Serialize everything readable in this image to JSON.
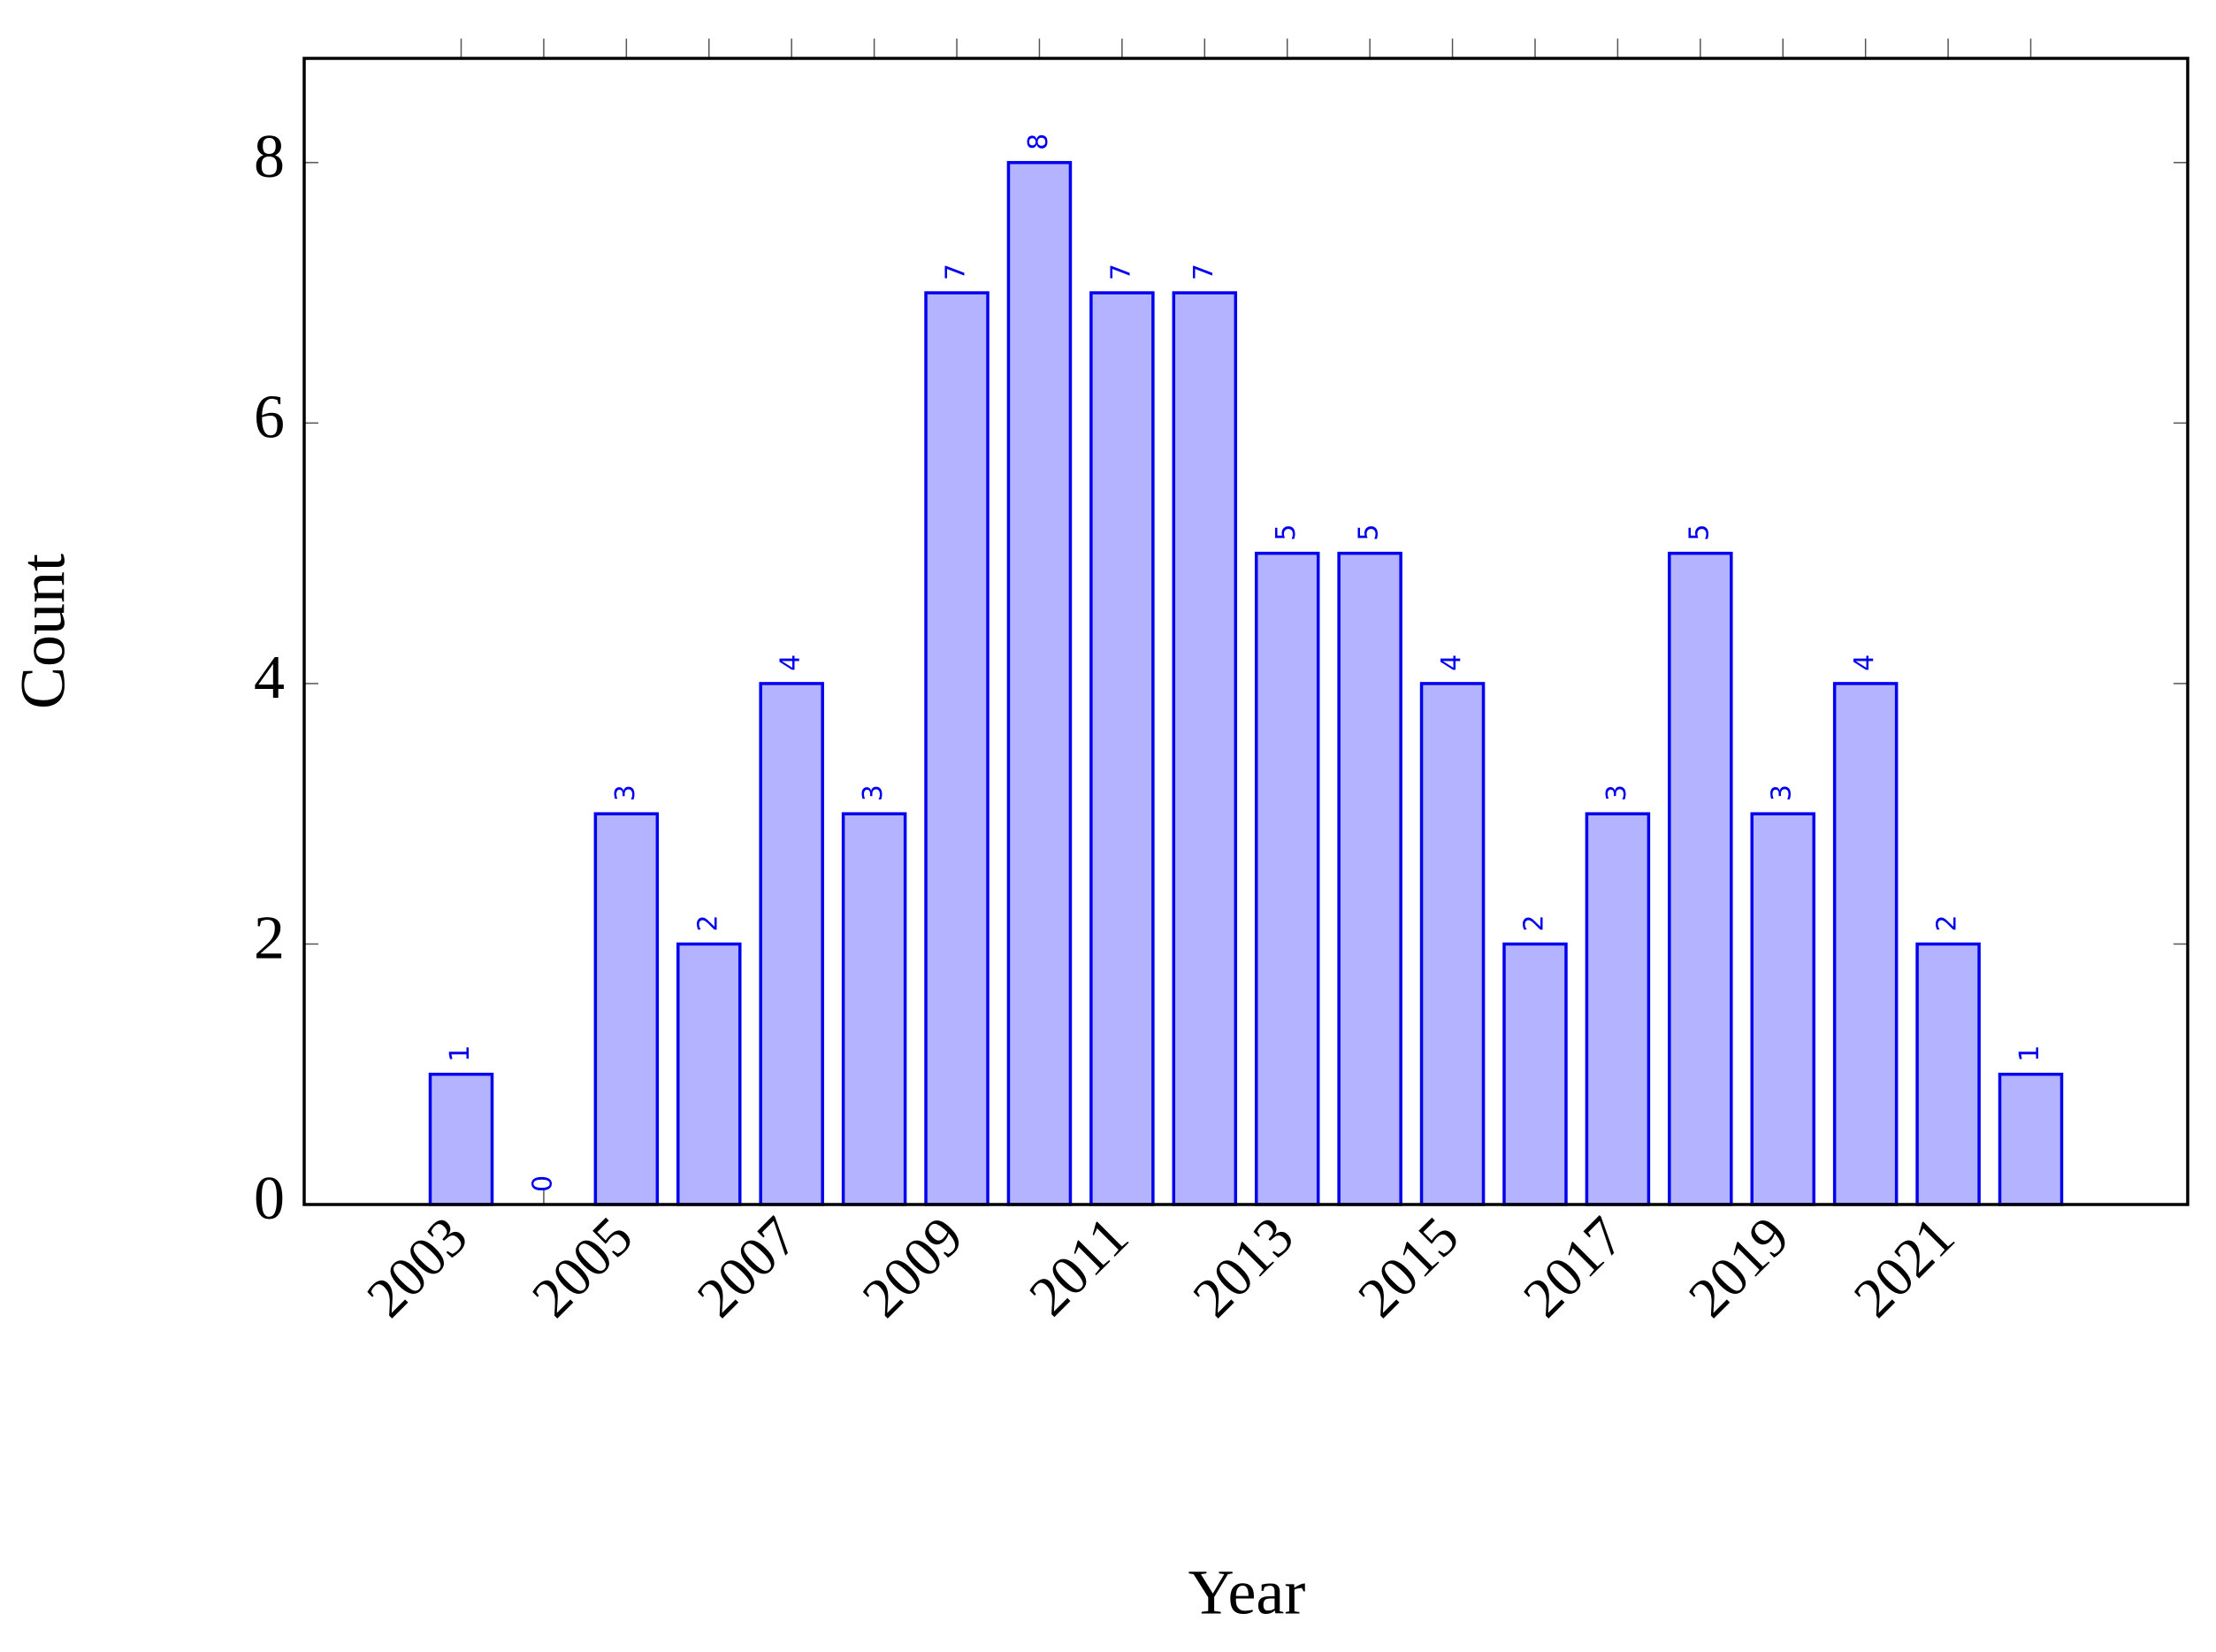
{
  "chart_data": {
    "type": "bar",
    "x": [
      2003,
      2004,
      2005,
      2006,
      2007,
      2008,
      2009,
      2010,
      2011,
      2012,
      2013,
      2014,
      2015,
      2016,
      2017,
      2018,
      2019,
      2020,
      2021,
      2022
    ],
    "values": [
      1,
      0,
      3,
      2,
      4,
      3,
      7,
      8,
      7,
      7,
      5,
      5,
      4,
      2,
      3,
      5,
      3,
      4,
      2,
      1
    ],
    "color": "#b3b3ff",
    "edge_color": "#0000ee",
    "label_color": "#0000ee",
    "xlabel": "Year",
    "ylabel": "Count",
    "xlim": [
      2001.1,
      2023.9
    ],
    "xticks": [
      2003,
      2005,
      2007,
      2009,
      2011,
      2013,
      2015,
      2017,
      2019,
      2021
    ],
    "ylim": [
      0,
      8.8
    ],
    "yticks": [
      0,
      2,
      4,
      6,
      8
    ]
  }
}
